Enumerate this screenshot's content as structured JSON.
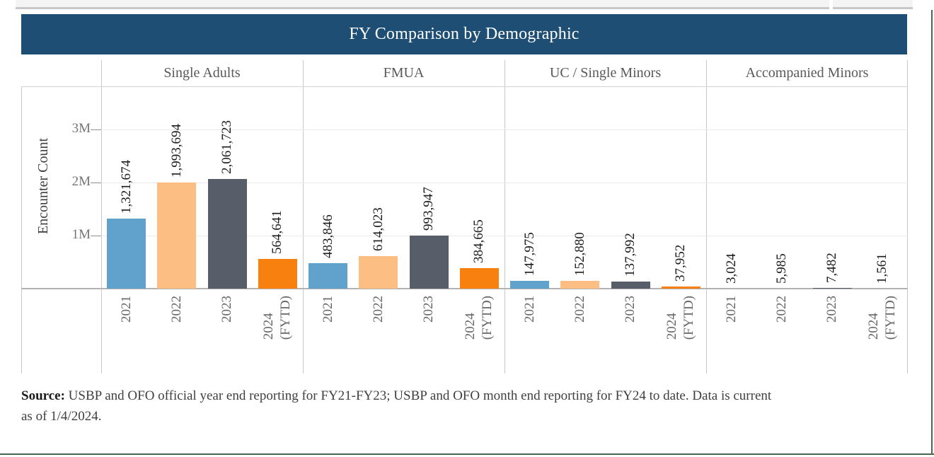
{
  "header": {
    "title": "FY Comparison by Demographic"
  },
  "chart_data": {
    "type": "bar",
    "title": "FY Comparison by Demographic",
    "ylabel": "Encounter Count",
    "xlabel": "",
    "ylim": [
      0,
      3800000
    ],
    "grid": true,
    "legend": "none",
    "yticks": [
      {
        "label": "1M",
        "value": 1000000
      },
      {
        "label": "2M",
        "value": 2000000
      },
      {
        "label": "3M",
        "value": 3000000
      }
    ],
    "fiscal_years": [
      "2021",
      "2022",
      "2023",
      "2024 (FYTD)"
    ],
    "x_tick_labels": [
      [
        "2021"
      ],
      [
        "2022"
      ],
      [
        "2023"
      ],
      [
        "2024",
        "(FYTD)"
      ]
    ],
    "bar_colors": [
      "#61a2cc",
      "#fcbe83",
      "#575d69",
      "#f7800e"
    ],
    "groups": [
      {
        "label": "Single Adults",
        "values": [
          1321674,
          1993694,
          2061723,
          564641
        ],
        "value_labels": [
          "1,321,674",
          "1,993,694",
          "2,061,723",
          "564,641"
        ]
      },
      {
        "label": "FMUA",
        "values": [
          483846,
          614023,
          993947,
          384665
        ],
        "value_labels": [
          "483,846",
          "614,023",
          "993,947",
          "384,665"
        ]
      },
      {
        "label": "UC / Single Minors",
        "values": [
          147975,
          152880,
          137992,
          37952
        ],
        "value_labels": [
          "147,975",
          "152,880",
          "137,992",
          "37,952"
        ]
      },
      {
        "label": "Accompanied Minors",
        "values": [
          3024,
          5985,
          7482,
          1561
        ],
        "value_labels": [
          "3,024",
          "5,985",
          "7,482",
          "1,561"
        ]
      }
    ]
  },
  "footer": {
    "bold_prefix": "Source:",
    "line1_rest": " USBP and OFO official year end reporting for FY21-FY23; USBP and OFO month end reporting for FY24 to date. Data is current",
    "line2": "as of 1/4/2024."
  },
  "colors": {
    "header_bg": "#1f4e74",
    "bar_2021": "#61a2cc",
    "bar_2022": "#fcbe83",
    "bar_2023": "#575d69",
    "bar_2024_fytd": "#f7800e",
    "frame_border": "#48664e",
    "top_strip_bg": "#f4f4f4",
    "top_strip_border": "#c8c8c8",
    "panel_divider": "#c9c9c9",
    "grid_line": "#e9e9e9",
    "axis_line": "#b3b3b3",
    "category_label": "#595959",
    "tick_label": "#757575",
    "x_label": "#666666",
    "value_label": "#1b1b1b"
  }
}
